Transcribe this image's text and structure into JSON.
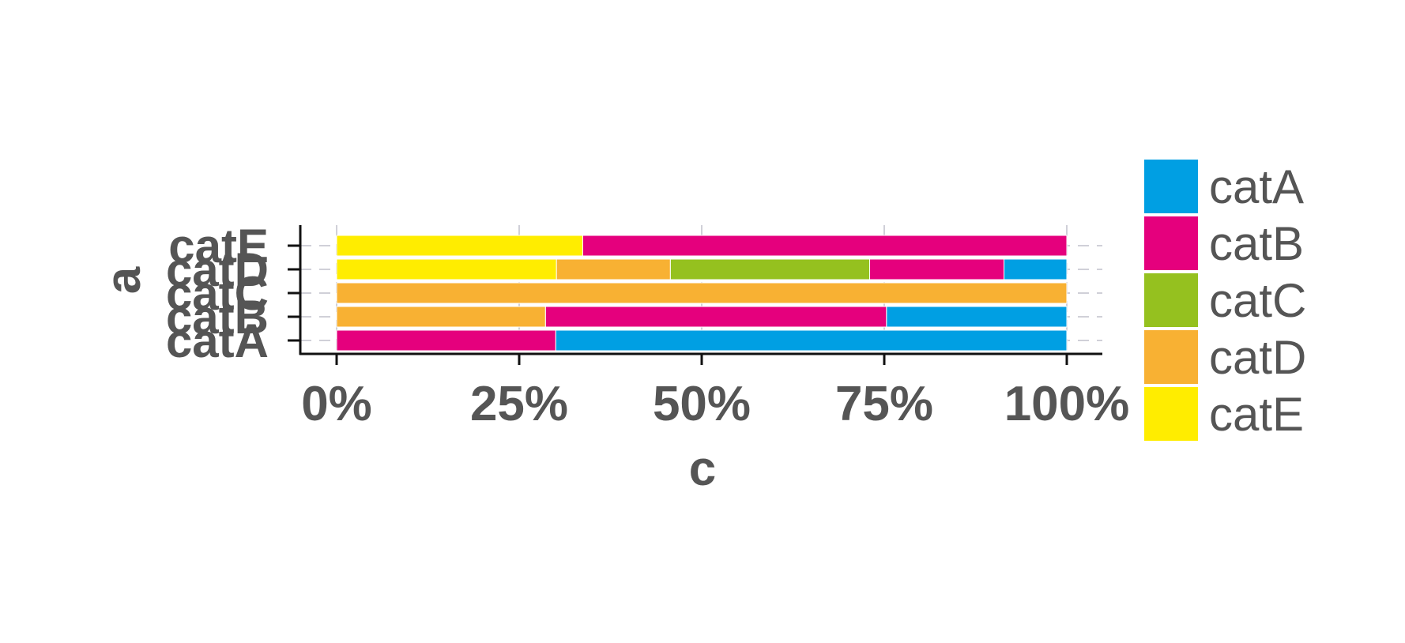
{
  "chart_data": {
    "type": "bar",
    "orientation": "horizontal",
    "stacked": true,
    "normalized": true,
    "xlabel": "c",
    "ylabel": "a",
    "xlim": [
      0,
      1
    ],
    "x_ticks": [
      {
        "value": 0,
        "label": "0%"
      },
      {
        "value": 0.25,
        "label": "25%"
      },
      {
        "value": 0.5,
        "label": "50%"
      },
      {
        "value": 0.75,
        "label": "75%"
      },
      {
        "value": 1,
        "label": "100%"
      }
    ],
    "categories": [
      "catA",
      "catB",
      "catC",
      "catD",
      "catE"
    ],
    "series": [
      {
        "name": "catA",
        "color": "#009fe3",
        "values": [
          0.7,
          0.247,
          0.0,
          0.086,
          0.0
        ]
      },
      {
        "name": "catB",
        "color": "#e5007d",
        "values": [
          0.3,
          0.467,
          0.0,
          0.184,
          0.663
        ]
      },
      {
        "name": "catC",
        "color": "#95c11f",
        "values": [
          0.0,
          0.0,
          0.0,
          0.273,
          0.0
        ]
      },
      {
        "name": "catD",
        "color": "#f8b133",
        "values": [
          0.0,
          0.286,
          1.0,
          0.156,
          0.0
        ]
      },
      {
        "name": "catE",
        "color": "#ffed00",
        "values": [
          0.0,
          0.0,
          0.0,
          0.301,
          0.337
        ]
      }
    ],
    "grid": true,
    "legend": {
      "position": "right",
      "entries": [
        "catA",
        "catB",
        "catC",
        "catD",
        "catE"
      ]
    }
  }
}
